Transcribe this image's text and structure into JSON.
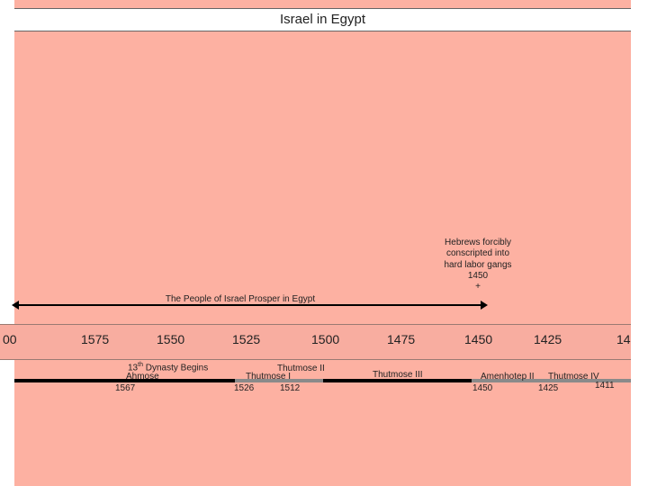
{
  "title": "Israel in Egypt",
  "note": {
    "lines": [
      "Hebrews forcibly",
      "conscripted into",
      "hard labor gangs",
      "1450",
      "+"
    ]
  },
  "span_label": "The People of Israel Prosper in Egypt",
  "years": [
    "00",
    "1575",
    "1550",
    "1525",
    "1500",
    "1475",
    "1450",
    "1425",
    "14"
  ],
  "events": {
    "dynasty_ordinal": "13",
    "dynasty_sup": "th",
    "dynasty_rest": " Dynasty Begins",
    "ahmose": "Ahmose",
    "ahmose_year": "1567",
    "thutmose_ii": "Thutmose II",
    "thutmose_i": "Thutmose I",
    "thutmose_i_year": "1526",
    "thutmose_ii_year": "1512",
    "thutmose_iii": "Thutmose III",
    "amenhotep_ii": "Amenhotep II",
    "thutmose_iv": "Thutmose IV",
    "amenhotep_ii_year": "1450",
    "thutmose_iv_year": "1425",
    "end_year": "1411"
  },
  "colors": {
    "panel": "#fdb1a2",
    "timeline_black": "#000000",
    "timeline_gray": "#8a8a8a"
  }
}
